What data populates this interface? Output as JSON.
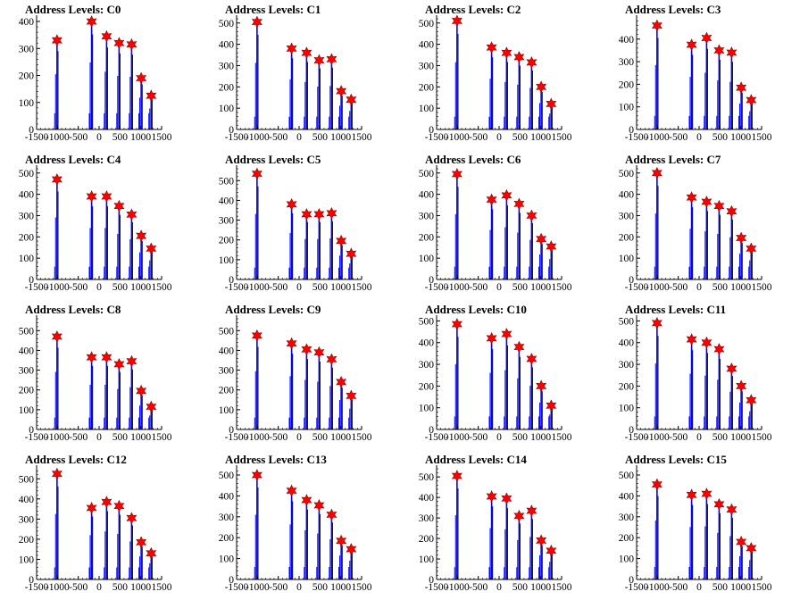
{
  "colors": {
    "peak": "#0000ff",
    "marker": "#ff0000",
    "axis": "#000000"
  },
  "chart_data": [
    {
      "type": "bar",
      "title": "Address Levels: C0",
      "ylim": [
        0,
        410
      ],
      "yticks": [
        0,
        100,
        200,
        300,
        400
      ],
      "xticks": [
        -1500,
        -1000,
        -500,
        0,
        500,
        1000,
        1500
      ],
      "xlim": [
        -1500,
        1500
      ],
      "peaks": [
        {
          "x": -1010,
          "y": 330
        },
        {
          "x": -180,
          "y": 400
        },
        {
          "x": 180,
          "y": 345
        },
        {
          "x": 480,
          "y": 320
        },
        {
          "x": 780,
          "y": 315
        },
        {
          "x": 1010,
          "y": 190
        },
        {
          "x": 1250,
          "y": 125
        }
      ]
    },
    {
      "type": "bar",
      "title": "Address Levels: C1",
      "ylim": [
        0,
        520
      ],
      "yticks": [
        0,
        100,
        200,
        300,
        400,
        500
      ],
      "xticks": [
        -1500,
        -1000,
        -500,
        0,
        500,
        1000,
        1500
      ],
      "xlim": [
        -1500,
        1500
      ],
      "peaks": [
        {
          "x": -1010,
          "y": 505
        },
        {
          "x": -180,
          "y": 380
        },
        {
          "x": 180,
          "y": 360
        },
        {
          "x": 480,
          "y": 325
        },
        {
          "x": 780,
          "y": 330
        },
        {
          "x": 1010,
          "y": 180
        },
        {
          "x": 1250,
          "y": 140
        }
      ]
    },
    {
      "type": "bar",
      "title": "Address Levels: C2",
      "ylim": [
        0,
        520
      ],
      "yticks": [
        0,
        100,
        200,
        300,
        400,
        500
      ],
      "xticks": [
        -1500,
        -1000,
        -500,
        0,
        500,
        1000,
        1500
      ],
      "xlim": [
        -1500,
        1500
      ],
      "peaks": [
        {
          "x": -1010,
          "y": 510
        },
        {
          "x": -180,
          "y": 385
        },
        {
          "x": 180,
          "y": 360
        },
        {
          "x": 480,
          "y": 340
        },
        {
          "x": 780,
          "y": 315
        },
        {
          "x": 1010,
          "y": 200
        },
        {
          "x": 1250,
          "y": 120
        }
      ]
    },
    {
      "type": "bar",
      "title": "Address Levels: C3",
      "ylim": [
        0,
        490
      ],
      "yticks": [
        0,
        100,
        200,
        300,
        400
      ],
      "xticks": [
        -1500,
        -1000,
        -500,
        0,
        500,
        1000,
        1500
      ],
      "xlim": [
        -1500,
        1500
      ],
      "peaks": [
        {
          "x": -1010,
          "y": 460
        },
        {
          "x": -180,
          "y": 375
        },
        {
          "x": 180,
          "y": 405
        },
        {
          "x": 480,
          "y": 350
        },
        {
          "x": 780,
          "y": 340
        },
        {
          "x": 1010,
          "y": 185
        },
        {
          "x": 1250,
          "y": 130
        }
      ]
    },
    {
      "type": "bar",
      "title": "Address Levels: C4",
      "ylim": [
        0,
        520
      ],
      "yticks": [
        0,
        100,
        200,
        300,
        400,
        500
      ],
      "xticks": [
        -1500,
        -1000,
        -500,
        0,
        500,
        1000,
        1500
      ],
      "xlim": [
        -1500,
        1500
      ],
      "peaks": [
        {
          "x": -1010,
          "y": 470
        },
        {
          "x": -180,
          "y": 390
        },
        {
          "x": 180,
          "y": 390
        },
        {
          "x": 480,
          "y": 345
        },
        {
          "x": 780,
          "y": 305
        },
        {
          "x": 1010,
          "y": 205
        },
        {
          "x": 1250,
          "y": 145
        }
      ]
    },
    {
      "type": "bar",
      "title": "Address Levels: C5",
      "ylim": [
        0,
        560
      ],
      "yticks": [
        0,
        100,
        200,
        300,
        400,
        500
      ],
      "xticks": [
        -1500,
        -1000,
        -500,
        0,
        500,
        1000,
        1500
      ],
      "xlim": [
        -1500,
        1500
      ],
      "peaks": [
        {
          "x": -1010,
          "y": 535
        },
        {
          "x": -180,
          "y": 380
        },
        {
          "x": 180,
          "y": 330
        },
        {
          "x": 480,
          "y": 330
        },
        {
          "x": 780,
          "y": 335
        },
        {
          "x": 1010,
          "y": 195
        },
        {
          "x": 1250,
          "y": 130
        }
      ]
    },
    {
      "type": "bar",
      "title": "Address Levels: C6",
      "ylim": [
        0,
        520
      ],
      "yticks": [
        0,
        100,
        200,
        300,
        400,
        500
      ],
      "xticks": [
        -1500,
        -1000,
        -500,
        0,
        500,
        1000,
        1500
      ],
      "xlim": [
        -1500,
        1500
      ],
      "peaks": [
        {
          "x": -1010,
          "y": 495
        },
        {
          "x": -180,
          "y": 375
        },
        {
          "x": 180,
          "y": 395
        },
        {
          "x": 480,
          "y": 355
        },
        {
          "x": 780,
          "y": 300
        },
        {
          "x": 1010,
          "y": 190
        },
        {
          "x": 1250,
          "y": 155
        }
      ]
    },
    {
      "type": "bar",
      "title": "Address Levels: C7",
      "ylim": [
        0,
        520
      ],
      "yticks": [
        0,
        100,
        200,
        300,
        400,
        500
      ],
      "xticks": [
        -1500,
        -1000,
        -500,
        0,
        500,
        1000,
        1500
      ],
      "xlim": [
        -1500,
        1500
      ],
      "peaks": [
        {
          "x": -1010,
          "y": 500
        },
        {
          "x": -180,
          "y": 385
        },
        {
          "x": 180,
          "y": 365
        },
        {
          "x": 480,
          "y": 345
        },
        {
          "x": 780,
          "y": 320
        },
        {
          "x": 1010,
          "y": 195
        },
        {
          "x": 1250,
          "y": 145
        }
      ]
    },
    {
      "type": "bar",
      "title": "Address Levels: C8",
      "ylim": [
        0,
        560
      ],
      "yticks": [
        0,
        100,
        200,
        300,
        400,
        500
      ],
      "xticks": [
        -1500,
        -1000,
        -500,
        0,
        500,
        1000,
        1500
      ],
      "xlim": [
        -1500,
        1500
      ],
      "peaks": [
        {
          "x": -1010,
          "y": 470
        },
        {
          "x": -180,
          "y": 365
        },
        {
          "x": 180,
          "y": 365
        },
        {
          "x": 480,
          "y": 330
        },
        {
          "x": 780,
          "y": 345
        },
        {
          "x": 1010,
          "y": 195
        },
        {
          "x": 1250,
          "y": 115
        }
      ]
    },
    {
      "type": "bar",
      "title": "Address Levels: C9",
      "ylim": [
        0,
        560
      ],
      "yticks": [
        0,
        100,
        200,
        300,
        400,
        500
      ],
      "xticks": [
        -1500,
        -1000,
        -500,
        0,
        500,
        1000,
        1500
      ],
      "xlim": [
        -1500,
        1500
      ],
      "peaks": [
        {
          "x": -1010,
          "y": 475
        },
        {
          "x": -180,
          "y": 435
        },
        {
          "x": 180,
          "y": 405
        },
        {
          "x": 480,
          "y": 390
        },
        {
          "x": 780,
          "y": 355
        },
        {
          "x": 1010,
          "y": 240
        },
        {
          "x": 1250,
          "y": 170
        }
      ]
    },
    {
      "type": "bar",
      "title": "Address Levels: C10",
      "ylim": [
        0,
        510
      ],
      "yticks": [
        0,
        100,
        200,
        300,
        400,
        500
      ],
      "xticks": [
        -1500,
        -1000,
        -500,
        0,
        500,
        1000,
        1500
      ],
      "xlim": [
        -1500,
        1500
      ],
      "peaks": [
        {
          "x": -1010,
          "y": 485
        },
        {
          "x": -180,
          "y": 420
        },
        {
          "x": 180,
          "y": 440
        },
        {
          "x": 480,
          "y": 380
        },
        {
          "x": 780,
          "y": 325
        },
        {
          "x": 1010,
          "y": 200
        },
        {
          "x": 1250,
          "y": 110
        }
      ]
    },
    {
      "type": "bar",
      "title": "Address Levels: C11",
      "ylim": [
        0,
        510
      ],
      "yticks": [
        0,
        100,
        200,
        300,
        400,
        500
      ],
      "xticks": [
        -1500,
        -1000,
        -500,
        0,
        500,
        1000,
        1500
      ],
      "xlim": [
        -1500,
        1500
      ],
      "peaks": [
        {
          "x": -1010,
          "y": 490
        },
        {
          "x": -180,
          "y": 415
        },
        {
          "x": 180,
          "y": 400
        },
        {
          "x": 480,
          "y": 370
        },
        {
          "x": 780,
          "y": 280
        },
        {
          "x": 1010,
          "y": 200
        },
        {
          "x": 1250,
          "y": 135
        }
      ]
    },
    {
      "type": "bar",
      "title": "Address Levels: C12",
      "ylim": [
        0,
        550
      ],
      "yticks": [
        0,
        100,
        200,
        300,
        400,
        500
      ],
      "xticks": [
        -1500,
        -1000,
        -500,
        0,
        500,
        1000,
        1500
      ],
      "xlim": [
        -1500,
        1500
      ],
      "peaks": [
        {
          "x": -1010,
          "y": 525
        },
        {
          "x": -180,
          "y": 355
        },
        {
          "x": 180,
          "y": 385
        },
        {
          "x": 480,
          "y": 365
        },
        {
          "x": 780,
          "y": 305
        },
        {
          "x": 1010,
          "y": 185
        },
        {
          "x": 1250,
          "y": 130
        }
      ]
    },
    {
      "type": "bar",
      "title": "Address Levels: C13",
      "ylim": [
        0,
        530
      ],
      "yticks": [
        0,
        100,
        200,
        300,
        400,
        500
      ],
      "xticks": [
        -1500,
        -1000,
        -500,
        0,
        500,
        1000,
        1500
      ],
      "xlim": [
        -1500,
        1500
      ],
      "peaks": [
        {
          "x": -1010,
          "y": 500
        },
        {
          "x": -180,
          "y": 425
        },
        {
          "x": 180,
          "y": 380
        },
        {
          "x": 480,
          "y": 355
        },
        {
          "x": 780,
          "y": 310
        },
        {
          "x": 1010,
          "y": 185
        },
        {
          "x": 1250,
          "y": 145
        }
      ]
    },
    {
      "type": "bar",
      "title": "Address Levels: C14",
      "ylim": [
        0,
        540
      ],
      "yticks": [
        0,
        100,
        200,
        300,
        400,
        500
      ],
      "xticks": [
        -1500,
        -1000,
        -500,
        0,
        500,
        1000,
        1500
      ],
      "xlim": [
        -1500,
        1500
      ],
      "peaks": [
        {
          "x": -1010,
          "y": 505
        },
        {
          "x": -180,
          "y": 405
        },
        {
          "x": 180,
          "y": 395
        },
        {
          "x": 480,
          "y": 310
        },
        {
          "x": 780,
          "y": 335
        },
        {
          "x": 1010,
          "y": 190
        },
        {
          "x": 1250,
          "y": 140
        }
      ]
    },
    {
      "type": "bar",
      "title": "Address Levels: C15",
      "ylim": [
        0,
        530
      ],
      "yticks": [
        0,
        100,
        200,
        300,
        400,
        500
      ],
      "xticks": [
        -1500,
        -1000,
        -500,
        0,
        500,
        1000,
        1500
      ],
      "xlim": [
        -1500,
        1500
      ],
      "peaks": [
        {
          "x": -1010,
          "y": 455
        },
        {
          "x": -180,
          "y": 405
        },
        {
          "x": 180,
          "y": 410
        },
        {
          "x": 480,
          "y": 360
        },
        {
          "x": 780,
          "y": 335
        },
        {
          "x": 1010,
          "y": 180
        },
        {
          "x": 1250,
          "y": 150
        }
      ]
    }
  ]
}
